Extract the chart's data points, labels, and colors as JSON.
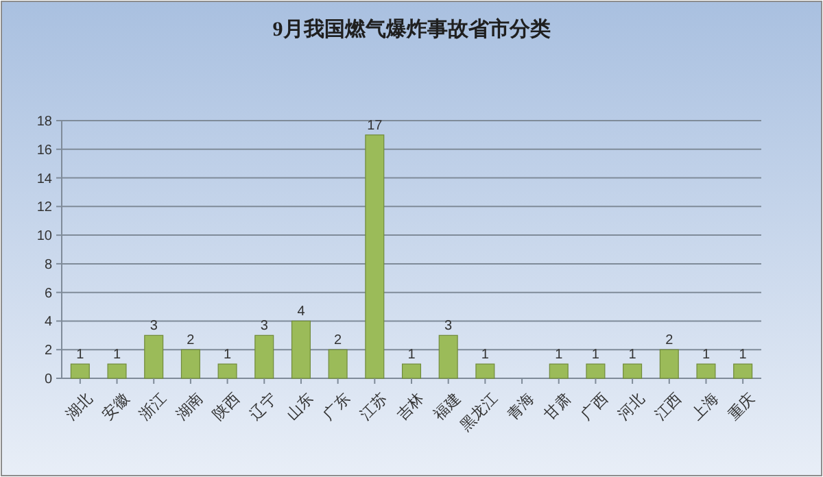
{
  "chart_data": {
    "type": "bar",
    "title": "9月我国燃气爆炸事故省市分类",
    "categories": [
      "湖北",
      "安徽",
      "浙江",
      "湖南",
      "陕西",
      "辽宁",
      "山东",
      "广东",
      "江苏",
      "吉林",
      "福建",
      "黑龙江",
      "青海",
      "甘肃",
      "广西",
      "河北",
      "江西",
      "上海",
      "重庆"
    ],
    "values": [
      1,
      1,
      3,
      2,
      1,
      3,
      4,
      2,
      17,
      1,
      3,
      1,
      null,
      1,
      1,
      1,
      2,
      1,
      1
    ],
    "color": "#9bbb59",
    "ylim": [
      0,
      18
    ],
    "yticks": [
      0,
      2,
      4,
      6,
      8,
      10,
      12,
      14,
      16,
      18
    ],
    "grid": "y",
    "data_labels": true
  }
}
